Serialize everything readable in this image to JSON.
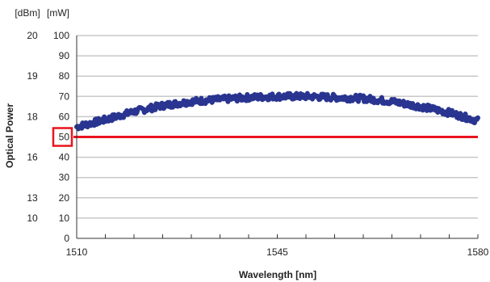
{
  "chart_data": {
    "type": "line",
    "title": "",
    "xlabel": "Wavelength [nm]",
    "ylabel": "Optical Power",
    "y_units": {
      "dbm": "[dBm]",
      "mw": "[mW]"
    },
    "x_ticks": [
      "1510",
      "1545",
      "1580"
    ],
    "xlim": [
      1510,
      1580
    ],
    "x_minor_step": 5,
    "ylim": [
      0,
      100
    ],
    "y_ticks_mw": [
      "0",
      "10",
      "20",
      "30",
      "40",
      "50",
      "60",
      "70",
      "80",
      "90",
      "100"
    ],
    "y_ticks_dbm": [
      {
        "label": "20",
        "at_mw": 100
      },
      {
        "label": "19",
        "at_mw": 80
      },
      {
        "label": "18",
        "at_mw": 60
      },
      {
        "label": "16",
        "at_mw": 40
      },
      {
        "label": "13",
        "at_mw": 20
      },
      {
        "label": "10",
        "at_mw": 10
      }
    ],
    "grid": true,
    "highlight": {
      "label": "50",
      "threshold_mw": 50,
      "color": "#e8141e"
    },
    "series": [
      {
        "color": "#1e2a8a",
        "x": [
          1510,
          1515,
          1520,
          1525,
          1530,
          1535,
          1540,
          1545,
          1550,
          1555,
          1560,
          1565,
          1570,
          1575,
          1580
        ],
        "y": [
          55,
          58.5,
          62.5,
          65.5,
          67.5,
          68.5,
          69.5,
          70,
          70,
          69.5,
          69,
          67.5,
          65,
          62,
          58
        ]
      }
    ]
  }
}
